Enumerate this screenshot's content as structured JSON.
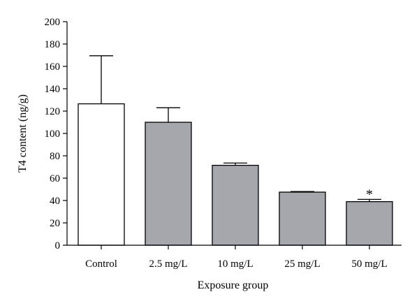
{
  "chart_data": {
    "type": "bar",
    "title": "",
    "xlabel": "Exposure group",
    "ylabel": "T4 content (ng/g)",
    "ylim": [
      0,
      200
    ],
    "yticks": [
      0,
      20,
      40,
      60,
      80,
      100,
      120,
      140,
      160,
      180,
      200
    ],
    "categories": [
      "Control",
      "2.5 mg/L",
      "10 mg/L",
      "25 mg/L",
      "50 mg/L"
    ],
    "values": [
      126.5,
      110,
      71.5,
      47.5,
      39
    ],
    "error_upper": [
      43,
      13,
      2,
      0.5,
      2
    ],
    "significance": [
      "",
      "",
      "",
      "",
      "*"
    ],
    "bar_colors": [
      "#ffffff",
      "#a6a6ad",
      "#a6a6ad",
      "#a6a6ad",
      "#a6a6ad"
    ],
    "grid": false,
    "legend": "none"
  }
}
